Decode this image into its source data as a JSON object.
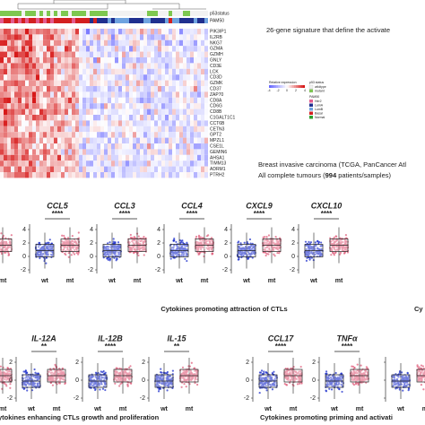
{
  "header": {
    "signature_title": "26-gene signature that define the activate",
    "dataset_line1": "Breast invasive carcinoma (TCGA, PanCancer Atl",
    "dataset_line2_pre": "All complete tumours (",
    "dataset_line2_bold": "994",
    "dataset_line2_post": " patients/samples)"
  },
  "heatmap": {
    "annotations": [
      "p53status",
      "PAM50"
    ],
    "genes": [
      "PIK3IP1",
      "IL2RB",
      "NKG7",
      "GZMA",
      "GZMH",
      "GNLY",
      "CD3E",
      "LCK",
      "CD3D",
      "GZMK",
      "CD37",
      "ZAP70",
      "CD8A",
      "CD6G",
      "CD8B",
      "C1GALT1C1",
      "CCT6B",
      "CETN3",
      "GPT2",
      "MPZL1",
      "CSE1L",
      "GEMIN6",
      "AHSA1",
      "TIMM13",
      "ADRM1",
      "PTRH2"
    ]
  },
  "legend": {
    "expression_title": "Relative expression",
    "scale": [
      "-4",
      "-2",
      "0",
      "2",
      "4"
    ],
    "p53_title": "p53 status",
    "p53": [
      "wildtype",
      "mutant"
    ],
    "pam50_title": "PAM50",
    "pam50": [
      "Her2",
      "LumA",
      "LumB",
      "Basal",
      "Normal"
    ]
  },
  "groups": [
    "wt",
    "mt"
  ],
  "panels_top": [
    {
      "gene": "CCL5",
      "signif": "****",
      "ticks": [
        "4",
        "2",
        "0",
        "-2"
      ]
    },
    {
      "gene": "CCL3",
      "signif": "****",
      "ticks": [
        "4",
        "2",
        "0",
        "-2"
      ]
    },
    {
      "gene": "CCL4",
      "signif": "****",
      "ticks": [
        "4",
        "2",
        "0",
        "-2"
      ]
    },
    {
      "gene": "CXCL9",
      "signif": "****",
      "ticks": [
        "4",
        "2",
        "0",
        "-2"
      ]
    },
    {
      "gene": "CXCL10",
      "signif": "****",
      "ticks": [
        "4",
        "2",
        "0",
        "-2"
      ]
    }
  ],
  "panels_bottom": [
    {
      "gene": "IL-12A",
      "signif": "**",
      "ticks": [
        "2",
        "0",
        "-2"
      ]
    },
    {
      "gene": "IL-12B",
      "signif": "****",
      "ticks": [
        "2",
        "0",
        "-2"
      ]
    },
    {
      "gene": "IL-15",
      "signif": "**",
      "ticks": [
        "2",
        "0",
        "-2"
      ]
    },
    {
      "gene": "CCL17",
      "signif": "****",
      "ticks": [
        "2",
        "0",
        "-2"
      ]
    },
    {
      "gene": "TNFα",
      "signif": "****",
      "ticks": [
        "2",
        "0",
        "-2"
      ]
    }
  ],
  "captions": {
    "top": "Cytokines promoting attraction of CTLs",
    "top_right": "Cy",
    "bottom_left": "ytokines enhancing CTLs growth and proliferation",
    "bottom_right": "Cytokines promoting priming and activati"
  }
}
